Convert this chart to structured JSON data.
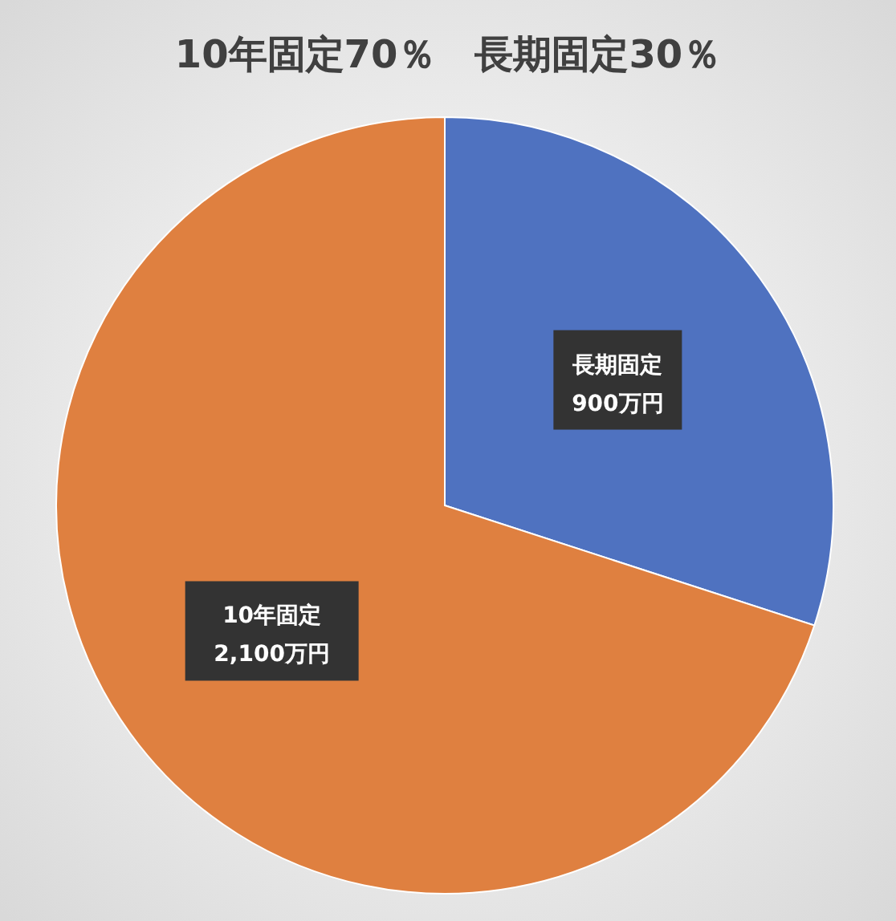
{
  "chart_data": {
    "type": "pie",
    "title": "10年固定70％　長期固定30％",
    "categories": [
      "長期固定",
      "10年固定"
    ],
    "values": [
      900,
      2100
    ],
    "colors": [
      "#4f72c0",
      "#df8040"
    ],
    "value_labels": [
      "900万円",
      "2,100万円"
    ]
  }
}
